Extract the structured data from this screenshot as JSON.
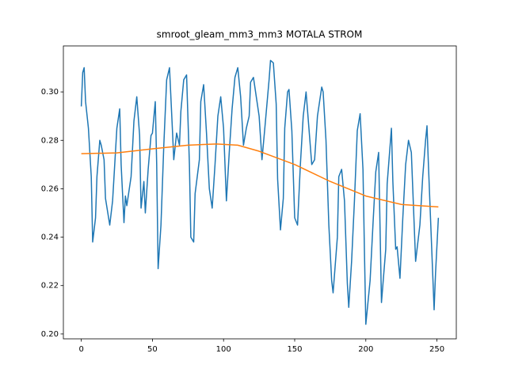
{
  "chart_data": {
    "type": "line",
    "title": "smroot_gleam_mm3_mm3 MOTALA STROM",
    "xlim": [
      -12.6,
      263.6
    ],
    "ylim": [
      0.198,
      0.319
    ],
    "xticks": [
      0,
      50,
      100,
      150,
      200,
      250
    ],
    "yticks": [
      {
        "value": 0.2,
        "label": "0.20"
      },
      0.22,
      0.24,
      0.26,
      0.28,
      {
        "value": 0.3,
        "label": "0.30"
      }
    ],
    "series": [
      {
        "color": "#1f77b4",
        "x": [
          0,
          1,
          2,
          3,
          5,
          7,
          8,
          10,
          11,
          13,
          14,
          16,
          17,
          20,
          22,
          25,
          27,
          28,
          30,
          31,
          32,
          35,
          37,
          39,
          41,
          42,
          44,
          45,
          47,
          49,
          50,
          52,
          53,
          54,
          56,
          58,
          60,
          62,
          64,
          65,
          67,
          69,
          70,
          72,
          74,
          76,
          77,
          79,
          80,
          83,
          84,
          86,
          88,
          90,
          92,
          94,
          96,
          98,
          100,
          102,
          104,
          106,
          108,
          110,
          112,
          114,
          116,
          118,
          119,
          121,
          123,
          125,
          127,
          129,
          132,
          133,
          135,
          137,
          138,
          140,
          142,
          143,
          145,
          146,
          148,
          150,
          152,
          154,
          156,
          158,
          160,
          162,
          164,
          166,
          169,
          170,
          172,
          174,
          176,
          177,
          180,
          181,
          183,
          185,
          187,
          188,
          190,
          192,
          194,
          196,
          198,
          199,
          200,
          203,
          205,
          207,
          209,
          211,
          214,
          215,
          218,
          219,
          221,
          222,
          224,
          226,
          228,
          230,
          232,
          233,
          235,
          238,
          240,
          242,
          243,
          244,
          246,
          248,
          249,
          251
        ],
        "values": [
          0.294,
          0.308,
          0.31,
          0.296,
          0.285,
          0.265,
          0.238,
          0.248,
          0.265,
          0.28,
          0.278,
          0.272,
          0.256,
          0.245,
          0.255,
          0.285,
          0.293,
          0.27,
          0.246,
          0.257,
          0.253,
          0.265,
          0.288,
          0.298,
          0.282,
          0.252,
          0.263,
          0.25,
          0.268,
          0.282,
          0.283,
          0.296,
          0.27,
          0.227,
          0.245,
          0.278,
          0.305,
          0.31,
          0.285,
          0.272,
          0.283,
          0.278,
          0.292,
          0.305,
          0.307,
          0.27,
          0.24,
          0.238,
          0.258,
          0.272,
          0.296,
          0.303,
          0.283,
          0.26,
          0.252,
          0.27,
          0.29,
          0.298,
          0.285,
          0.255,
          0.275,
          0.293,
          0.306,
          0.31,
          0.298,
          0.278,
          0.285,
          0.29,
          0.304,
          0.306,
          0.298,
          0.29,
          0.272,
          0.285,
          0.305,
          0.313,
          0.312,
          0.295,
          0.264,
          0.243,
          0.256,
          0.285,
          0.3,
          0.301,
          0.284,
          0.248,
          0.245,
          0.27,
          0.29,
          0.3,
          0.285,
          0.27,
          0.272,
          0.29,
          0.302,
          0.3,
          0.28,
          0.245,
          0.222,
          0.217,
          0.24,
          0.265,
          0.268,
          0.255,
          0.221,
          0.211,
          0.23,
          0.255,
          0.284,
          0.291,
          0.268,
          0.235,
          0.204,
          0.222,
          0.245,
          0.267,
          0.275,
          0.213,
          0.235,
          0.262,
          0.285,
          0.263,
          0.235,
          0.236,
          0.223,
          0.248,
          0.27,
          0.28,
          0.275,
          0.26,
          0.23,
          0.245,
          0.265,
          0.28,
          0.286,
          0.27,
          0.24,
          0.21,
          0.225,
          0.248
        ]
      },
      {
        "color": "#ff7f0e",
        "x": [
          0,
          25,
          50,
          75,
          95,
          110,
          125,
          150,
          175,
          200,
          225,
          251
        ],
        "values": [
          0.2745,
          0.2748,
          0.2765,
          0.278,
          0.2785,
          0.278,
          0.2755,
          0.27,
          0.263,
          0.257,
          0.2535,
          0.2525
        ]
      }
    ]
  }
}
